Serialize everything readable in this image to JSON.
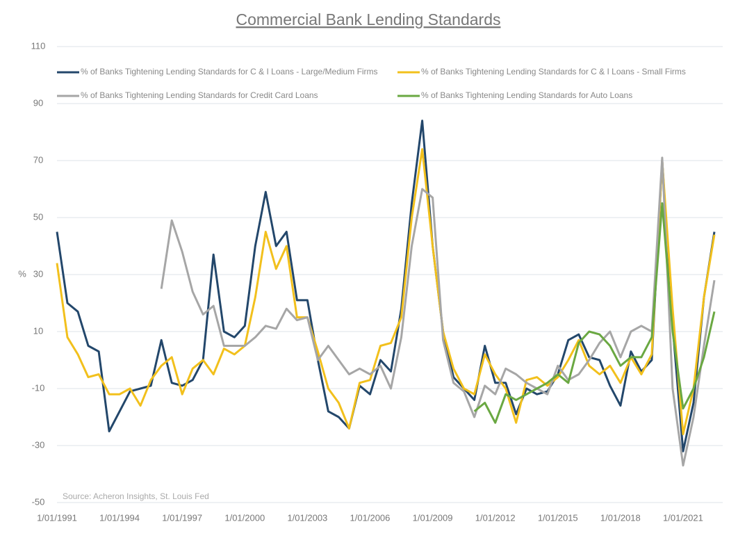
{
  "chart_data": {
    "type": "line",
    "title": "Commercial Bank Lending Standards",
    "y_label": "%",
    "source": "Source: Acheron Insights, St. Louis Fed",
    "x": [
      "1/01/1991",
      "7/01/1991",
      "1/01/1992",
      "7/01/1992",
      "1/01/1993",
      "7/01/1993",
      "1/01/1994",
      "7/01/1994",
      "1/01/1995",
      "7/01/1995",
      "1/01/1996",
      "7/01/1996",
      "1/01/1997",
      "7/01/1997",
      "1/01/1998",
      "7/01/1998",
      "1/01/1999",
      "7/01/1999",
      "1/01/2000",
      "7/01/2000",
      "1/01/2001",
      "7/01/2001",
      "1/01/2002",
      "7/01/2002",
      "1/01/2003",
      "7/01/2003",
      "1/01/2004",
      "7/01/2004",
      "1/01/2005",
      "7/01/2005",
      "1/01/2006",
      "7/01/2006",
      "1/01/2007",
      "7/01/2007",
      "1/01/2008",
      "7/01/2008",
      "1/01/2009",
      "7/01/2009",
      "1/01/2010",
      "7/01/2010",
      "1/01/2011",
      "7/01/2011",
      "1/01/2012",
      "7/01/2012",
      "1/01/2013",
      "7/01/2013",
      "1/01/2014",
      "7/01/2014",
      "1/01/2015",
      "7/01/2015",
      "1/01/2016",
      "7/01/2016",
      "1/01/2017",
      "7/01/2017",
      "1/01/2018",
      "7/01/2018",
      "1/01/2019",
      "7/01/2019",
      "1/01/2020",
      "7/01/2020",
      "1/01/2021",
      "7/01/2021",
      "1/01/2022",
      "7/01/2022"
    ],
    "xticks": [
      "1/01/1991",
      "1/01/1994",
      "1/01/1997",
      "1/01/2000",
      "1/01/2003",
      "1/01/2006",
      "1/01/2009",
      "1/01/2012",
      "1/01/2015",
      "1/01/2018",
      "1/01/2021"
    ],
    "ylim": [
      -50,
      110
    ],
    "yticks": [
      -50,
      -30,
      -10,
      10,
      30,
      50,
      70,
      90,
      110
    ],
    "grid": true,
    "series": [
      {
        "name": "% of Banks Tightening Lending Standards for C & I Loans - Large/Medium Firms",
        "color": "#23476b",
        "values": [
          45,
          20,
          17,
          5,
          3,
          -25,
          -18,
          -11,
          -10,
          -9,
          7,
          -8,
          -9,
          -7,
          0,
          37,
          10,
          8,
          12,
          40,
          59,
          40,
          45,
          21,
          21,
          0,
          -18,
          -20,
          -24,
          -9,
          -12,
          0,
          -4,
          18,
          55,
          84,
          40,
          10,
          -6,
          -10,
          -14,
          5,
          -8,
          -8,
          -19,
          -10,
          -12,
          -11,
          -5,
          7,
          9,
          1,
          0,
          -9,
          -16,
          3,
          -4,
          0,
          70,
          12,
          -32,
          -15,
          22,
          45
        ]
      },
      {
        "name": "% of Banks Tightening Lending Standards for C & I Loans - Small Firms",
        "color": "#f2c01c",
        "values": [
          34,
          8,
          2,
          -6,
          -5,
          -12,
          -12,
          -10,
          -16,
          -7,
          -2,
          1,
          -12,
          -3,
          0,
          -5,
          4,
          2,
          5,
          22,
          45,
          32,
          40,
          15,
          15,
          3,
          -10,
          -15,
          -24,
          -8,
          -7,
          5,
          6,
          15,
          50,
          74,
          40,
          10,
          -3,
          -10,
          -12,
          2,
          -5,
          -10,
          -22,
          -7,
          -6,
          -9,
          -6,
          0,
          7,
          -2,
          -5,
          -2,
          -8,
          1,
          -5,
          2,
          70,
          18,
          -26,
          -10,
          22,
          44
        ]
      },
      {
        "name": "% of Banks Tightening Lending Standards for Credit Card Loans",
        "color": "#a6a6a6",
        "values": [
          null,
          null,
          null,
          null,
          null,
          null,
          null,
          null,
          null,
          null,
          25,
          49,
          38,
          24,
          16,
          19,
          5,
          5,
          5,
          8,
          12,
          11,
          18,
          14,
          15,
          0,
          5,
          0,
          -5,
          -3,
          -5,
          -2,
          -10,
          8,
          40,
          60,
          57,
          7,
          -8,
          -11,
          -20,
          -9,
          -12,
          -3,
          -5,
          -8,
          -10,
          -12,
          -2,
          -7,
          -5,
          0,
          6,
          10,
          1,
          10,
          12,
          10,
          71,
          -10,
          -37,
          -20,
          5,
          28
        ]
      },
      {
        "name": "% of Banks Tightening Lending Standards for Auto Loans",
        "color": "#6aa842",
        "values": [
          null,
          null,
          null,
          null,
          null,
          null,
          null,
          null,
          null,
          null,
          null,
          null,
          null,
          null,
          null,
          null,
          null,
          null,
          null,
          null,
          null,
          null,
          null,
          null,
          null,
          null,
          null,
          null,
          null,
          null,
          null,
          null,
          null,
          null,
          null,
          null,
          null,
          null,
          null,
          null,
          -18,
          -15,
          -22,
          -12,
          -14,
          -12,
          -10,
          -8,
          -5,
          -8,
          6,
          10,
          9,
          5,
          -2,
          1,
          1,
          8,
          55,
          10,
          -17,
          -10,
          1,
          17
        ]
      }
    ]
  }
}
